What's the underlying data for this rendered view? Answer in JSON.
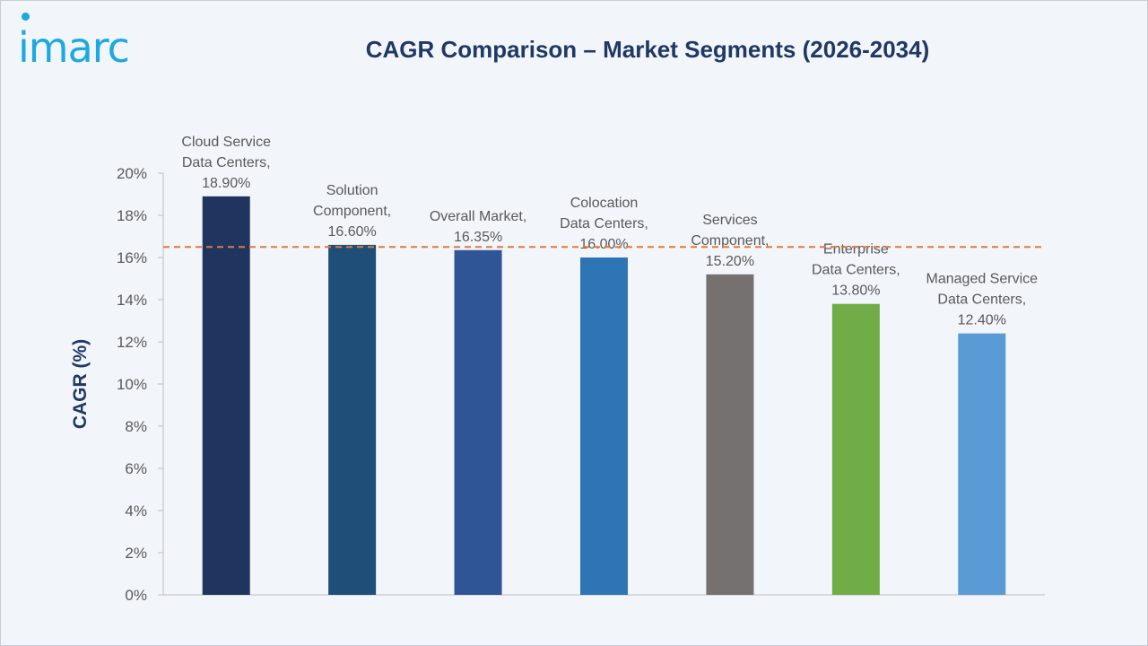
{
  "brand": {
    "logo_text": "imarc",
    "accent": "#1aa9e0"
  },
  "chart_data": {
    "type": "bar",
    "title": "CAGR Comparison – Market Segments (2026-2034)",
    "ylabel": "CAGR (%)",
    "xlabel": "",
    "ylim": [
      0,
      20
    ],
    "y_ticks": [
      "0%",
      "2%",
      "4%",
      "6%",
      "8%",
      "10%",
      "12%",
      "14%",
      "16%",
      "18%",
      "20%"
    ],
    "grid": false,
    "reference_line": {
      "value": 16.5,
      "style": "dashed",
      "color": "#e07b39"
    },
    "bars": [
      {
        "label_lines": [
          "Cloud Service",
          "Data Centers,",
          "18.90%"
        ],
        "value": 18.9,
        "color": "#1f3560"
      },
      {
        "label_lines": [
          "Solution",
          "Component,",
          "16.60%"
        ],
        "value": 16.6,
        "color": "#1f4e79"
      },
      {
        "label_lines": [
          "Overall Market,",
          "16.35%"
        ],
        "value": 16.35,
        "color": "#2f5597"
      },
      {
        "label_lines": [
          "Colocation",
          "Data Centers,",
          "16.00%"
        ],
        "value": 16.0,
        "color": "#2e75b6"
      },
      {
        "label_lines": [
          "Services",
          "Component,",
          "15.20%"
        ],
        "value": 15.2,
        "color": "#767171"
      },
      {
        "label_lines": [
          "Enterprise",
          "Data Centers,",
          "13.80%"
        ],
        "value": 13.8,
        "color": "#70ad47"
      },
      {
        "label_lines": [
          "Managed Service",
          "Data Centers,",
          "12.40%"
        ],
        "value": 12.4,
        "color": "#5b9bd5"
      }
    ]
  }
}
